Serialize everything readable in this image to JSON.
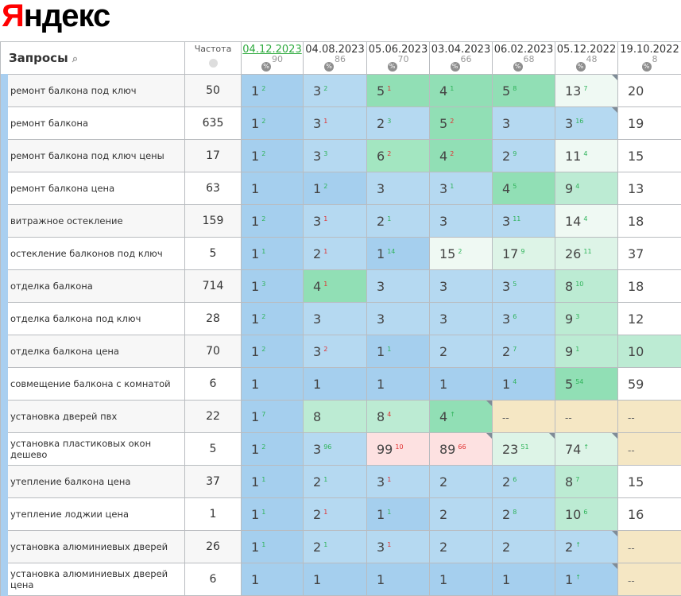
{
  "logo": {
    "first": "Я",
    "rest": "ндекс"
  },
  "header": {
    "queries_label": "Запросы",
    "frequency_label": "Частота",
    "dates": [
      {
        "date": "04.12.2023",
        "percent": "90",
        "active": true
      },
      {
        "date": "04.08.2023",
        "percent": "86"
      },
      {
        "date": "05.06.2023",
        "percent": "70"
      },
      {
        "date": "03.04.2023",
        "percent": "66"
      },
      {
        "date": "06.02.2023",
        "percent": "68"
      },
      {
        "date": "05.12.2022",
        "percent": "48"
      },
      {
        "date": "19.10.2022",
        "percent": "8"
      }
    ]
  },
  "colors": {
    "B1": "#a5cfee",
    "B2": "#b5d9f1",
    "G1": "#91dfb5",
    "G2": "#a3e6c1",
    "G3": "#bcebd3",
    "G4": "#ddf4e7",
    "G5": "#eff9f3",
    "W": "#ffffff",
    "Y": "#f5e7c4",
    "P": "#fde1e1",
    "up": "#2fb35a",
    "down": "#e03030"
  },
  "rows": [
    {
      "query": "ремонт балкона под ключ",
      "freq": "50",
      "cells": [
        [
          "1",
          "2",
          "up",
          "B1",
          0
        ],
        [
          "3",
          "2",
          "up",
          "B2",
          0
        ],
        [
          "5",
          "1",
          "down",
          "G1",
          0
        ],
        [
          "4",
          "1",
          "up",
          "G1",
          0
        ],
        [
          "5",
          "8",
          "up",
          "G1",
          0
        ],
        [
          "13",
          "7",
          "up",
          "G5",
          1
        ],
        [
          "20",
          "",
          "",
          "W",
          0
        ]
      ]
    },
    {
      "query": "ремонт балкона",
      "freq": "635",
      "cells": [
        [
          "1",
          "2",
          "up",
          "B1",
          0
        ],
        [
          "3",
          "1",
          "down",
          "B2",
          0
        ],
        [
          "2",
          "3",
          "up",
          "B2",
          0
        ],
        [
          "5",
          "2",
          "down",
          "G1",
          0
        ],
        [
          "3",
          "",
          "",
          "B2",
          0
        ],
        [
          "3",
          "16",
          "up",
          "B2",
          1
        ],
        [
          "19",
          "",
          "",
          "W",
          0
        ]
      ]
    },
    {
      "query": "ремонт балкона под ключ цены",
      "freq": "17",
      "cells": [
        [
          "1",
          "2",
          "up",
          "B1",
          0
        ],
        [
          "3",
          "3",
          "up",
          "B2",
          0
        ],
        [
          "6",
          "2",
          "down",
          "G2",
          0
        ],
        [
          "4",
          "2",
          "down",
          "G1",
          0
        ],
        [
          "2",
          "9",
          "up",
          "B2",
          0
        ],
        [
          "11",
          "4",
          "up",
          "G5",
          0
        ],
        [
          "15",
          "",
          "",
          "W",
          0
        ]
      ]
    },
    {
      "query": "ремонт балкона цена",
      "freq": "63",
      "cells": [
        [
          "1",
          "",
          "",
          "B1",
          0
        ],
        [
          "1",
          "2",
          "up",
          "B1",
          0
        ],
        [
          "3",
          "",
          "",
          "B2",
          0
        ],
        [
          "3",
          "1",
          "up",
          "B2",
          0
        ],
        [
          "4",
          "5",
          "up",
          "G1",
          0
        ],
        [
          "9",
          "4",
          "up",
          "G3",
          0
        ],
        [
          "13",
          "",
          "",
          "W",
          0
        ]
      ]
    },
    {
      "query": "витражное остекление",
      "freq": "159",
      "cells": [
        [
          "1",
          "2",
          "up",
          "B1",
          0
        ],
        [
          "3",
          "1",
          "down",
          "B2",
          0
        ],
        [
          "2",
          "1",
          "up",
          "B2",
          0
        ],
        [
          "3",
          "",
          "",
          "B2",
          0
        ],
        [
          "3",
          "11",
          "up",
          "B2",
          0
        ],
        [
          "14",
          "4",
          "up",
          "G5",
          0
        ],
        [
          "18",
          "",
          "",
          "W",
          0
        ]
      ]
    },
    {
      "query": "остекление балконов под ключ",
      "freq": "5",
      "cells": [
        [
          "1",
          "1",
          "up",
          "B1",
          0
        ],
        [
          "2",
          "1",
          "down",
          "B2",
          0
        ],
        [
          "1",
          "14",
          "up",
          "B1",
          0
        ],
        [
          "15",
          "2",
          "up",
          "G5",
          0
        ],
        [
          "17",
          "9",
          "up",
          "G4",
          0
        ],
        [
          "26",
          "11",
          "up",
          "G4",
          0
        ],
        [
          "37",
          "",
          "",
          "W",
          0
        ]
      ]
    },
    {
      "query": "отделка балкона",
      "freq": "714",
      "cells": [
        [
          "1",
          "3",
          "up",
          "B1",
          0
        ],
        [
          "4",
          "1",
          "down",
          "G1",
          0
        ],
        [
          "3",
          "",
          "",
          "B2",
          0
        ],
        [
          "3",
          "",
          "",
          "B2",
          0
        ],
        [
          "3",
          "5",
          "up",
          "B2",
          0
        ],
        [
          "8",
          "10",
          "up",
          "G3",
          0
        ],
        [
          "18",
          "",
          "",
          "W",
          0
        ]
      ]
    },
    {
      "query": "отделка балкона под ключ",
      "freq": "28",
      "cells": [
        [
          "1",
          "2",
          "up",
          "B1",
          0
        ],
        [
          "3",
          "",
          "",
          "B2",
          0
        ],
        [
          "3",
          "",
          "",
          "B2",
          0
        ],
        [
          "3",
          "",
          "",
          "B2",
          0
        ],
        [
          "3",
          "6",
          "up",
          "B2",
          0
        ],
        [
          "9",
          "3",
          "up",
          "G3",
          0
        ],
        [
          "12",
          "",
          "",
          "W",
          0
        ]
      ]
    },
    {
      "query": "отделка балкона цена",
      "freq": "70",
      "cells": [
        [
          "1",
          "2",
          "up",
          "B1",
          0
        ],
        [
          "3",
          "2",
          "down",
          "B2",
          0
        ],
        [
          "1",
          "1",
          "up",
          "B1",
          0
        ],
        [
          "2",
          "",
          "",
          "B2",
          0
        ],
        [
          "2",
          "7",
          "up",
          "B2",
          0
        ],
        [
          "9",
          "1",
          "up",
          "G3",
          0
        ],
        [
          "10",
          "",
          "",
          "G3",
          0
        ]
      ]
    },
    {
      "query": "совмещение балкона с комнатой",
      "freq": "6",
      "cells": [
        [
          "1",
          "",
          "",
          "B1",
          0
        ],
        [
          "1",
          "",
          "",
          "B1",
          0
        ],
        [
          "1",
          "",
          "",
          "B1",
          0
        ],
        [
          "1",
          "",
          "",
          "B1",
          0
        ],
        [
          "1",
          "4",
          "up",
          "B1",
          0
        ],
        [
          "5",
          "54",
          "up",
          "G1",
          0
        ],
        [
          "59",
          "",
          "",
          "W",
          0
        ]
      ]
    },
    {
      "query": "установка дверей пвх",
      "freq": "22",
      "cells": [
        [
          "1",
          "7",
          "up",
          "B1",
          0
        ],
        [
          "8",
          "",
          "",
          "G3",
          0
        ],
        [
          "8",
          "4",
          "down",
          "G3",
          0
        ],
        [
          "4",
          "↑",
          "up",
          "G1",
          1
        ],
        [
          "--",
          "",
          "",
          "Y",
          0
        ],
        [
          "--",
          "",
          "",
          "Y",
          0
        ],
        [
          "--",
          "",
          "",
          "Y",
          0
        ]
      ]
    },
    {
      "query": "установка пластиковых окон дешево",
      "freq": "5",
      "cells": [
        [
          "1",
          "2",
          "up",
          "B1",
          0
        ],
        [
          "3",
          "96",
          "up",
          "B2",
          0
        ],
        [
          "99",
          "10",
          "down",
          "P",
          0
        ],
        [
          "89",
          "66",
          "down",
          "P",
          1
        ],
        [
          "23",
          "51",
          "up",
          "G4",
          1
        ],
        [
          "74",
          "↑",
          "up",
          "G4",
          1
        ],
        [
          "--",
          "",
          "",
          "Y",
          0
        ]
      ]
    },
    {
      "query": "утепление балкона цена",
      "freq": "37",
      "cells": [
        [
          "1",
          "1",
          "up",
          "B1",
          0
        ],
        [
          "2",
          "1",
          "up",
          "B2",
          0
        ],
        [
          "3",
          "1",
          "down",
          "B2",
          0
        ],
        [
          "2",
          "",
          "",
          "B2",
          0
        ],
        [
          "2",
          "6",
          "up",
          "B2",
          0
        ],
        [
          "8",
          "7",
          "up",
          "G3",
          0
        ],
        [
          "15",
          "",
          "",
          "W",
          0
        ]
      ]
    },
    {
      "query": "утепление лоджии цена",
      "freq": "1",
      "cells": [
        [
          "1",
          "1",
          "up",
          "B1",
          0
        ],
        [
          "2",
          "1",
          "down",
          "B2",
          0
        ],
        [
          "1",
          "1",
          "up",
          "B1",
          0
        ],
        [
          "2",
          "",
          "",
          "B2",
          0
        ],
        [
          "2",
          "8",
          "up",
          "B2",
          0
        ],
        [
          "10",
          "6",
          "up",
          "G3",
          0
        ],
        [
          "16",
          "",
          "",
          "W",
          0
        ]
      ]
    },
    {
      "query": "установка алюминиевых дверей",
      "freq": "26",
      "cells": [
        [
          "1",
          "1",
          "up",
          "B1",
          0
        ],
        [
          "2",
          "1",
          "up",
          "B2",
          0
        ],
        [
          "3",
          "1",
          "down",
          "B2",
          0
        ],
        [
          "2",
          "",
          "",
          "B2",
          0
        ],
        [
          "2",
          "",
          "",
          "B2",
          0
        ],
        [
          "2",
          "↑",
          "up",
          "B2",
          1
        ],
        [
          "--",
          "",
          "",
          "Y",
          0
        ]
      ]
    },
    {
      "query": "установка алюминиевых дверей цена",
      "freq": "6",
      "cells": [
        [
          "1",
          "",
          "",
          "B1",
          0
        ],
        [
          "1",
          "",
          "",
          "B1",
          0
        ],
        [
          "1",
          "",
          "",
          "B1",
          0
        ],
        [
          "1",
          "",
          "",
          "B1",
          0
        ],
        [
          "1",
          "",
          "",
          "B1",
          0
        ],
        [
          "1",
          "↑",
          "up",
          "B1",
          1
        ],
        [
          "--",
          "",
          "",
          "Y",
          0
        ]
      ]
    }
  ]
}
